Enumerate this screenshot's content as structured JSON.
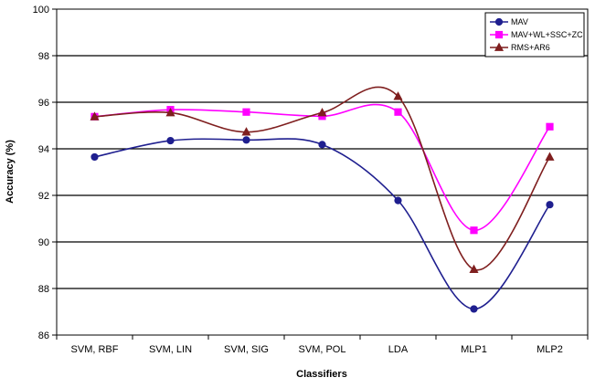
{
  "chart_data": {
    "type": "line",
    "title": "",
    "xlabel": "Classifiers",
    "ylabel": "Accuracy (%)",
    "ylim": [
      86,
      100
    ],
    "yticks": [
      86,
      88,
      90,
      92,
      94,
      96,
      98,
      100
    ],
    "grid": "major-y",
    "legend_position": "top-right",
    "smooth": true,
    "categories": [
      "SVM, RBF",
      "SVM, LIN",
      "SVM, SIG",
      "SVM, POL",
      "LDA",
      "MLP1",
      "MLP2"
    ],
    "series": [
      {
        "name": "MAV",
        "color": "#1f1f8f",
        "marker": "circle",
        "values": [
          93.65,
          94.35,
          94.38,
          94.18,
          91.78,
          87.12,
          91.6
        ]
      },
      {
        "name": "MAV+WL+SSC+ZC",
        "color": "#ff00ff",
        "marker": "square",
        "values": [
          95.38,
          95.68,
          95.58,
          95.4,
          95.58,
          90.5,
          94.95
        ]
      },
      {
        "name": "RMS+AR6",
        "color": "#7f1f1f",
        "marker": "triangle",
        "values": [
          95.38,
          95.55,
          94.72,
          95.55,
          96.25,
          88.82,
          93.65
        ]
      }
    ]
  }
}
